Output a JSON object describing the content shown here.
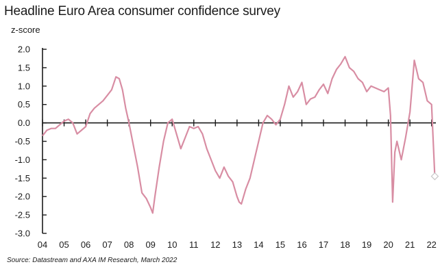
{
  "chart_data": {
    "type": "line",
    "title": "Headline Euro Area consumer confidence survey",
    "ylabel": "z-score",
    "xlabel": "",
    "source": "Source: Datastream and AXA IM Research, March 2022",
    "ylim": [
      -3.0,
      2.0
    ],
    "xlim": [
      2004.0,
      2022.2
    ],
    "grid": false,
    "line_color": "#d88da3",
    "y_ticks": [
      2.0,
      1.5,
      1.0,
      0.5,
      0.0,
      -0.5,
      -1.0,
      -1.5,
      -2.0,
      -2.5,
      -3.0
    ],
    "y_tick_labels": [
      "2.0",
      "1.5",
      "1.0",
      "0.5",
      "0.0",
      "-0.5",
      "-1.0",
      "-1.5",
      "-2.0",
      "-2.5",
      "-3.0"
    ],
    "x_ticks": [
      2004,
      2005,
      2006,
      2007,
      2008,
      2009,
      2010,
      2011,
      2012,
      2013,
      2014,
      2015,
      2016,
      2017,
      2018,
      2019,
      2020,
      2021,
      2022
    ],
    "x_tick_labels": [
      "04",
      "05",
      "06",
      "07",
      "08",
      "09",
      "10",
      "11",
      "12",
      "13",
      "14",
      "15",
      "16",
      "17",
      "18",
      "19",
      "20",
      "21",
      "22"
    ],
    "series": [
      {
        "x": [
          2004.0,
          2004.2,
          2004.4,
          2004.6,
          2004.8,
          2005.0,
          2005.2,
          2005.4,
          2005.6,
          2005.8,
          2006.0,
          2006.2,
          2006.4,
          2006.6,
          2006.8,
          2007.0,
          2007.2,
          2007.4,
          2007.55,
          2007.7,
          2007.85,
          2008.0,
          2008.2,
          2008.4,
          2008.6,
          2008.8,
          2009.0,
          2009.1,
          2009.2,
          2009.4,
          2009.6,
          2009.8,
          2010.0,
          2010.2,
          2010.4,
          2010.6,
          2010.8,
          2011.0,
          2011.2,
          2011.4,
          2011.6,
          2011.8,
          2012.0,
          2012.2,
          2012.4,
          2012.6,
          2012.8,
          2013.0,
          2013.1,
          2013.2,
          2013.4,
          2013.6,
          2013.8,
          2014.0,
          2014.2,
          2014.4,
          2014.6,
          2014.8,
          2015.0,
          2015.2,
          2015.4,
          2015.6,
          2015.8,
          2016.0,
          2016.2,
          2016.4,
          2016.6,
          2016.8,
          2017.0,
          2017.2,
          2017.4,
          2017.6,
          2017.8,
          2018.0,
          2018.2,
          2018.4,
          2018.6,
          2018.8,
          2019.0,
          2019.2,
          2019.4,
          2019.6,
          2019.8,
          2020.0,
          2020.1,
          2020.2,
          2020.3,
          2020.4,
          2020.6,
          2020.8,
          2021.0,
          2021.2,
          2021.4,
          2021.6,
          2021.8,
          2022.0,
          2022.15
        ],
        "values": [
          -0.35,
          -0.2,
          -0.15,
          -0.15,
          -0.05,
          0.05,
          0.1,
          0.0,
          -0.3,
          -0.2,
          -0.1,
          0.25,
          0.4,
          0.5,
          0.6,
          0.75,
          0.9,
          1.25,
          1.2,
          0.9,
          0.4,
          0.0,
          -0.6,
          -1.2,
          -1.9,
          -2.05,
          -2.3,
          -2.45,
          -2.0,
          -1.2,
          -0.5,
          0.0,
          0.1,
          -0.3,
          -0.7,
          -0.4,
          -0.1,
          -0.15,
          -0.1,
          -0.3,
          -0.7,
          -1.0,
          -1.3,
          -1.5,
          -1.2,
          -1.45,
          -1.6,
          -2.0,
          -2.15,
          -2.2,
          -1.8,
          -1.5,
          -1.0,
          -0.5,
          0.0,
          0.2,
          0.1,
          -0.05,
          0.1,
          0.5,
          1.0,
          0.7,
          0.85,
          1.1,
          0.5,
          0.65,
          0.7,
          0.9,
          1.05,
          0.8,
          1.2,
          1.45,
          1.6,
          1.8,
          1.5,
          1.4,
          1.2,
          1.1,
          0.85,
          1.0,
          0.95,
          0.9,
          0.85,
          0.95,
          0.2,
          -2.15,
          -0.8,
          -0.5,
          -1.0,
          -0.4,
          0.3,
          1.7,
          1.2,
          1.1,
          0.6,
          0.5,
          -1.45
        ]
      }
    ],
    "annotations": [
      {
        "type": "marker",
        "shape": "diamond-open",
        "x": 2022.15,
        "y": -1.45
      }
    ]
  }
}
